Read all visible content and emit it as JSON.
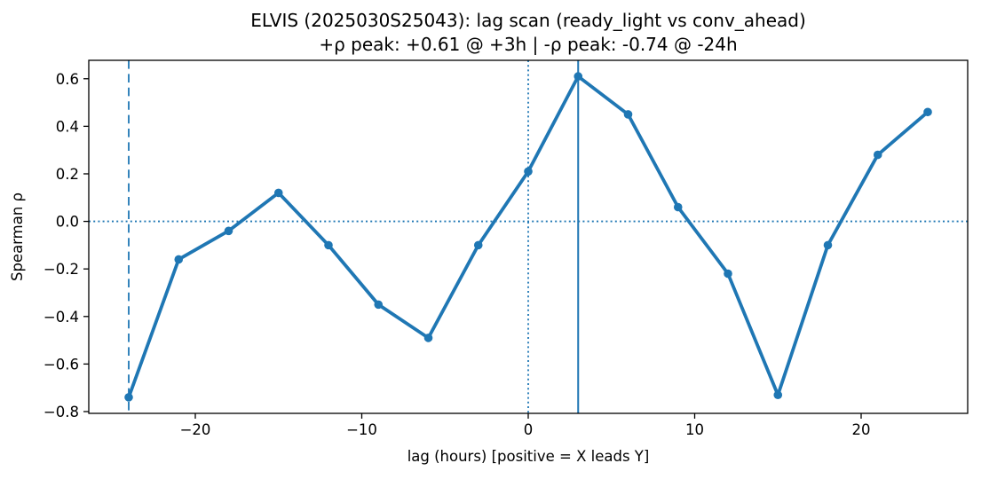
{
  "chart_data": {
    "type": "line",
    "title": "ELVIS (2025030S25043): lag scan (ready_light vs conv_ahead)",
    "subtitle": "+ρ peak: +0.61 @ +3h | -ρ peak: -0.74 @ -24h",
    "xlabel": "lag (hours) [positive = X leads Y]",
    "ylabel": "Spearman ρ",
    "series": [
      {
        "name": "spearman-rho-vs-lag",
        "x": [
          -24,
          -21,
          -18,
          -15,
          -12,
          -9,
          -6,
          -3,
          0,
          3,
          6,
          9,
          12,
          15,
          18,
          21,
          24
        ],
        "y": [
          -0.74,
          -0.16,
          -0.04,
          0.12,
          -0.1,
          -0.35,
          -0.49,
          -0.1,
          0.21,
          0.61,
          0.45,
          0.06,
          -0.22,
          -0.73,
          -0.1,
          0.28,
          0.46
        ],
        "color": "#1f77b4",
        "marker": "circle"
      }
    ],
    "xlim": [
      -26.4,
      26.4
    ],
    "ylim": [
      -0.8075,
      0.6775
    ],
    "x_ticks": {
      "values": [
        -20,
        -10,
        0,
        10,
        20
      ],
      "labels": [
        "−20",
        "−10",
        "0",
        "10",
        "20"
      ]
    },
    "y_ticks": {
      "values": [
        0.6,
        0.4,
        0.2,
        0.0,
        -0.2,
        -0.4,
        -0.6,
        -0.8
      ],
      "labels": [
        "0.6",
        "0.4",
        "0.2",
        "0.0",
        "−0.2",
        "−0.4",
        "−0.6",
        "−0.8"
      ]
    },
    "reference_lines": [
      {
        "name": "zero-rho-hline",
        "orientation": "h",
        "value": 0,
        "style": "dotted",
        "color": "#1f77b4"
      },
      {
        "name": "zero-lag-vline",
        "orientation": "v",
        "value": 0,
        "style": "dotted",
        "color": "#1f77b4"
      },
      {
        "name": "neg-peak-vline",
        "orientation": "v",
        "value": -24,
        "style": "dashed",
        "color": "#1f77b4"
      },
      {
        "name": "pos-peak-vline",
        "orientation": "v",
        "value": 3,
        "style": "solid",
        "color": "#1f77b4"
      }
    ],
    "grid": false,
    "legend": null,
    "peak_annotations": {
      "positive": {
        "rho": 0.61,
        "lag_hours": 3
      },
      "negative": {
        "rho": -0.74,
        "lag_hours": -24
      }
    },
    "spine_color": "#000000"
  }
}
